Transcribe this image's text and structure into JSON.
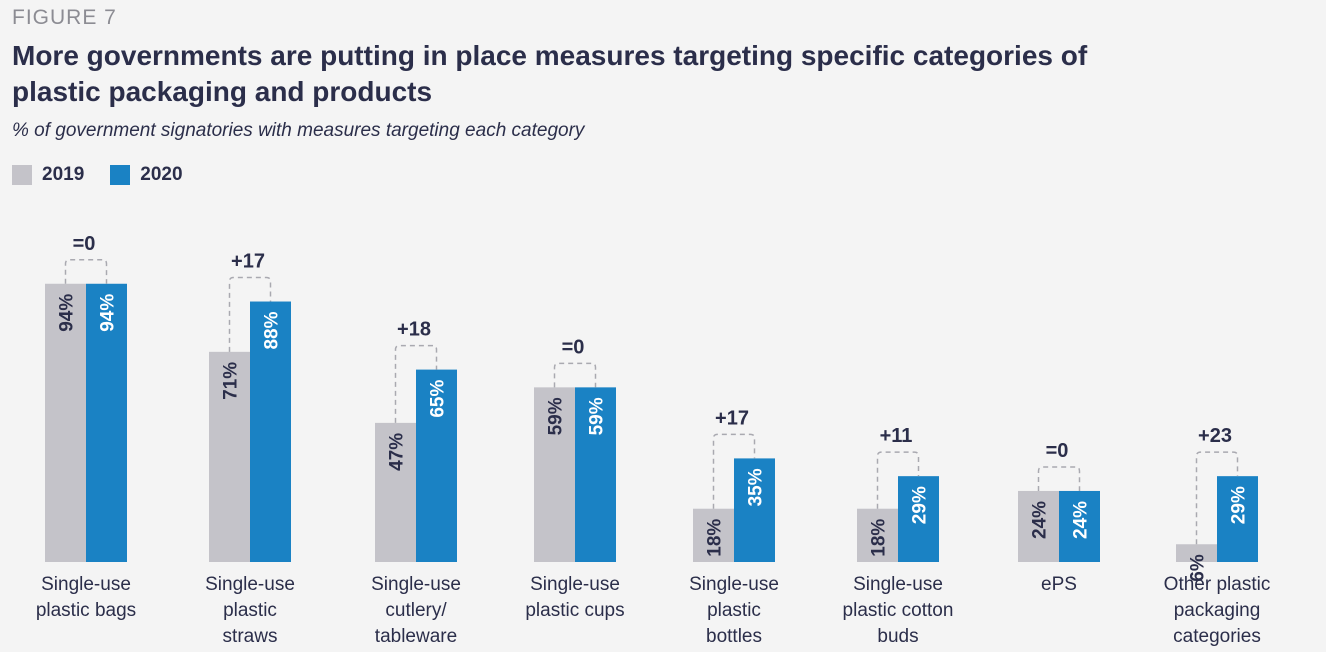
{
  "figure_label": "FIGURE 7",
  "chart_data": {
    "type": "bar",
    "title": "More governments are putting in place measures targeting specific categories of plastic packaging and products",
    "subtitle": "% of government signatories with measures targeting each category",
    "categories": [
      [
        "Single-use",
        "plastic bags"
      ],
      [
        "Single-use",
        "plastic",
        "straws"
      ],
      [
        "Single-use",
        "cutlery/",
        "tableware"
      ],
      [
        "Single-use",
        "plastic cups"
      ],
      [
        "Single-use",
        "plastic",
        "bottles"
      ],
      [
        "Single-use",
        "plastic cotton",
        "buds"
      ],
      [
        "ePS"
      ],
      [
        "Other plastic",
        "packaging",
        "categories"
      ]
    ],
    "series": [
      {
        "name": "2019",
        "color": "#c4c3c9",
        "values": [
          94,
          71,
          47,
          59,
          18,
          18,
          24,
          6
        ],
        "labels": [
          "94%",
          "71%",
          "47%",
          "59%",
          "18%",
          "18%",
          "24%",
          "6%"
        ]
      },
      {
        "name": "2020",
        "color": "#1a82c4",
        "values": [
          94,
          88,
          65,
          59,
          35,
          29,
          24,
          29
        ],
        "labels": [
          "94%",
          "88%",
          "65%",
          "59%",
          "35%",
          "29%",
          "24%",
          "29%"
        ]
      }
    ],
    "differences": [
      "=0",
      "+17",
      "+18",
      "=0",
      "+17",
      "+11",
      "=0",
      "+23"
    ],
    "ylim": [
      0,
      100
    ],
    "legend": "top-left",
    "grid": false
  }
}
